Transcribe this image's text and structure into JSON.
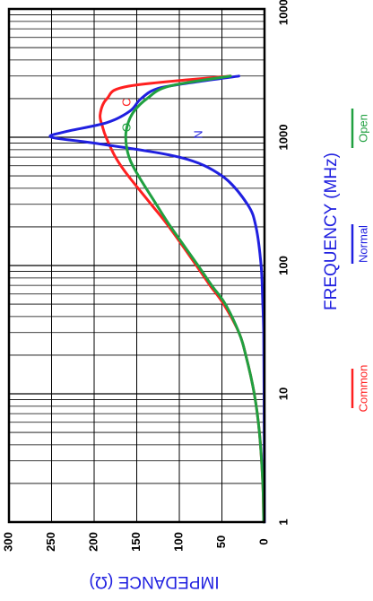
{
  "chart_data": {
    "type": "line",
    "xlabel": "FREQUENCY (MHz)",
    "ylabel": "IMPEDANCE (Ω)",
    "x_scale": "log",
    "xlim": [
      1,
      10000
    ],
    "ylim": [
      0,
      300
    ],
    "x_ticks": [
      "1",
      "10",
      "100",
      "1000",
      "10000"
    ],
    "y_ticks": [
      "0",
      "50",
      "100",
      "150",
      "200",
      "250",
      "300"
    ],
    "grid": true,
    "legend": "right",
    "series": [
      {
        "name": "Common",
        "curve_label": "C",
        "color": "#ff2020",
        "points": [
          [
            1,
            1
          ],
          [
            2,
            2
          ],
          [
            5,
            6
          ],
          [
            10,
            12
          ],
          [
            20,
            22
          ],
          [
            30,
            30
          ],
          [
            50,
            48
          ],
          [
            70,
            64
          ],
          [
            100,
            80
          ],
          [
            200,
            112
          ],
          [
            300,
            133
          ],
          [
            500,
            160
          ],
          [
            700,
            175
          ],
          [
            1000,
            186
          ],
          [
            1200,
            190
          ],
          [
            1500,
            193
          ],
          [
            2000,
            185
          ],
          [
            2500,
            160
          ],
          [
            3000,
            40
          ]
        ]
      },
      {
        "name": "Normal",
        "curve_label": "N",
        "color": "#2020e0",
        "points": [
          [
            1,
            0
          ],
          [
            10,
            0.5
          ],
          [
            30,
            1
          ],
          [
            50,
            2
          ],
          [
            100,
            4
          ],
          [
            200,
            10
          ],
          [
            300,
            20
          ],
          [
            500,
            50
          ],
          [
            700,
            100
          ],
          [
            900,
            200
          ],
          [
            1000,
            250
          ],
          [
            1100,
            235
          ],
          [
            1300,
            185
          ],
          [
            1600,
            158
          ],
          [
            2000,
            145
          ],
          [
            2400,
            125
          ],
          [
            2700,
            80
          ],
          [
            3000,
            30
          ]
        ]
      },
      {
        "name": "Open",
        "curve_label": "O",
        "color": "#20a040",
        "points": [
          [
            1,
            1
          ],
          [
            2,
            2
          ],
          [
            5,
            6
          ],
          [
            10,
            12
          ],
          [
            20,
            22
          ],
          [
            30,
            30
          ],
          [
            50,
            46
          ],
          [
            70,
            62
          ],
          [
            100,
            78
          ],
          [
            200,
            110
          ],
          [
            300,
            127
          ],
          [
            500,
            148
          ],
          [
            700,
            159
          ],
          [
            1000,
            163
          ],
          [
            1300,
            160
          ],
          [
            1600,
            153
          ],
          [
            2000,
            138
          ],
          [
            2500,
            112
          ],
          [
            3000,
            40
          ]
        ]
      }
    ]
  }
}
